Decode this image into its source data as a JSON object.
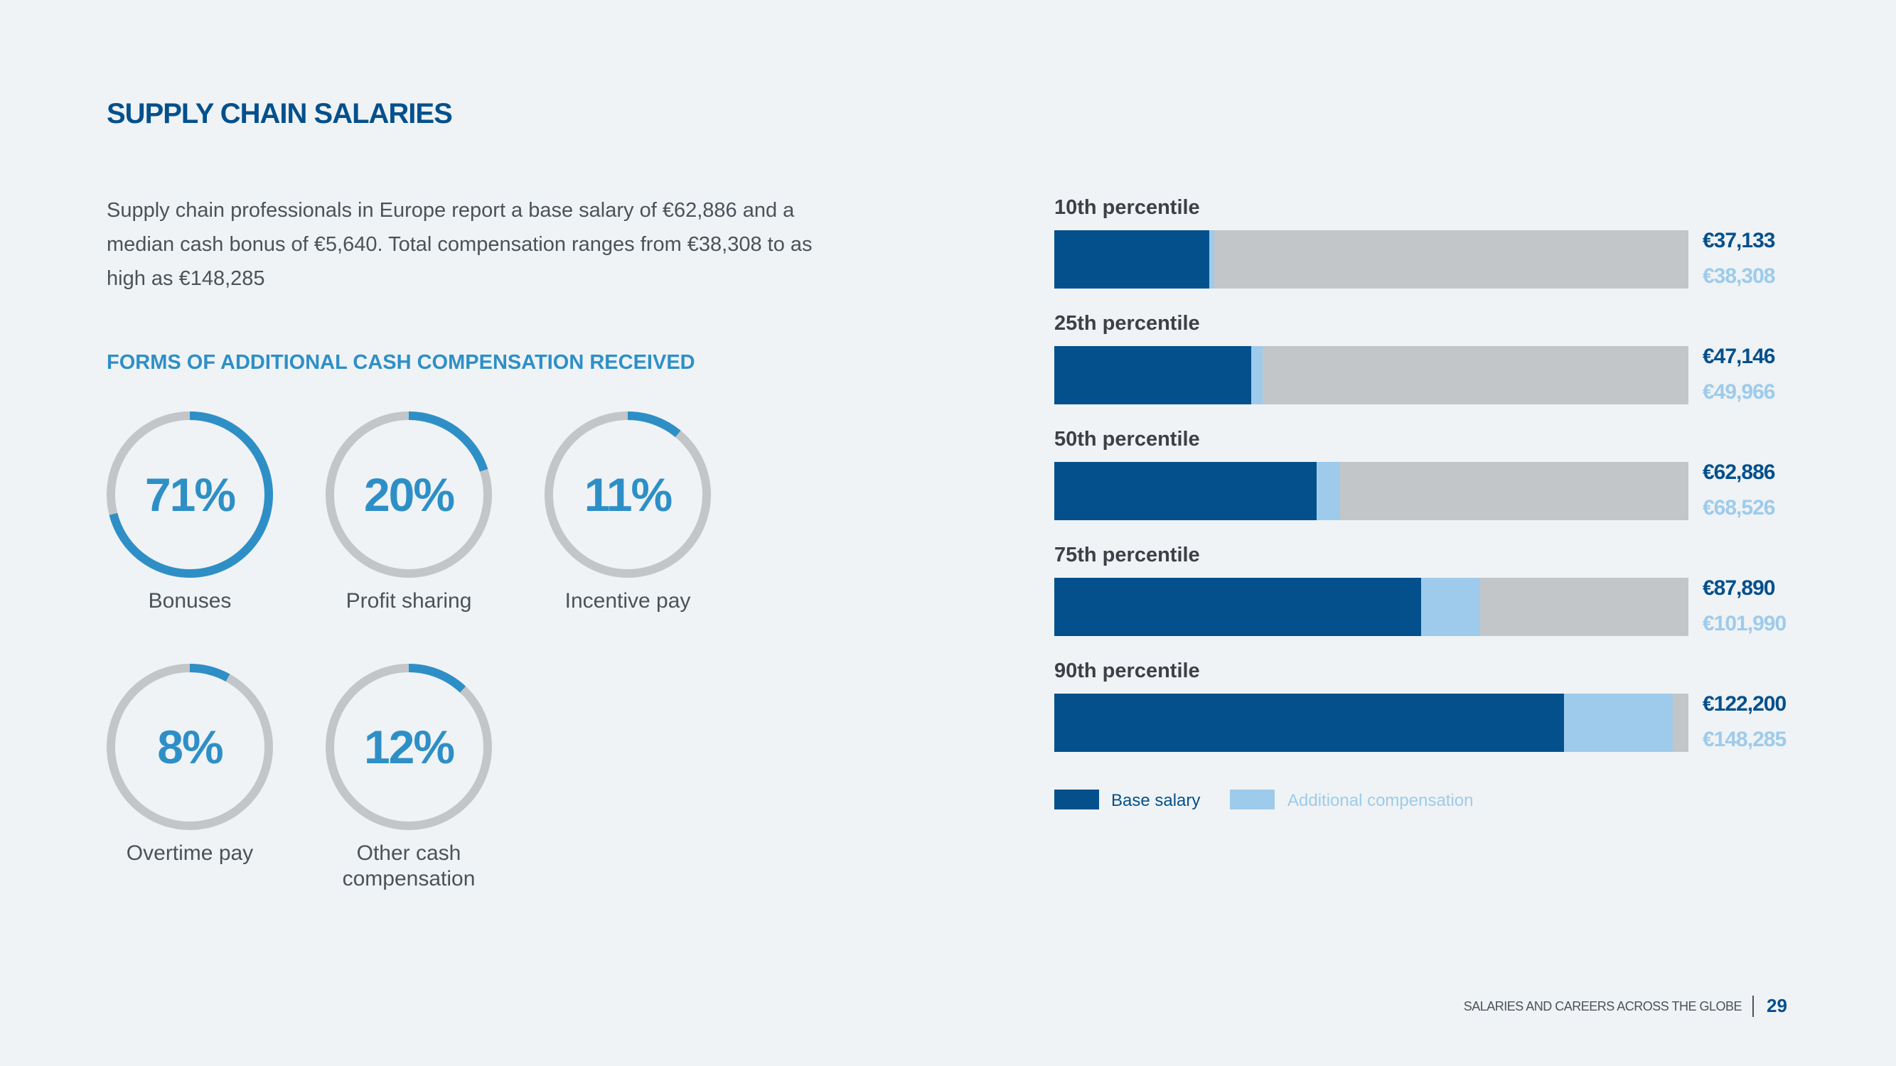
{
  "page": {
    "title": "SUPPLY CHAIN SALARIES",
    "intro": "Supply chain professionals in Europe report a base salary of €62,886 and a median cash bonus of €5,640. Total compensation ranges from €38,308 to as high as €148,285",
    "section_title": "FORMS OF ADDITIONAL CASH COMPENSATION RECEIVED",
    "footer_text": "SALARIES AND CAREERS ACROSS THE GLOBE",
    "page_number": "29"
  },
  "colors": {
    "base": "#04508c",
    "additional": "#9ecbeb",
    "track": "#c2c6c9",
    "accent": "#2e8fc7"
  },
  "chart_data": [
    {
      "type": "pie",
      "subtype": "donut",
      "categories": [
        "Bonuses",
        "Profit sharing",
        "Incentive pay",
        "Overtime pay",
        "Other cash compensation"
      ],
      "values": [
        71,
        20,
        11,
        8,
        12
      ],
      "labels": [
        "71%",
        "20%",
        "11%",
        "8%",
        "12%"
      ]
    },
    {
      "type": "bar",
      "orientation": "horizontal",
      "stacked": true,
      "categories": [
        "10th percentile",
        "25th percentile",
        "50th percentile",
        "75th percentile",
        "90th percentile"
      ],
      "series": [
        {
          "name": "Base salary",
          "values": [
            37133,
            47146,
            62886,
            87890,
            122200
          ]
        },
        {
          "name": "Additional compensation",
          "values": [
            1175,
            2820,
            5640,
            14100,
            26085
          ]
        }
      ],
      "totals": [
        38308,
        49966,
        68526,
        101990,
        148285
      ],
      "base_labels": [
        "€37,133",
        "€47,146",
        "€62,886",
        "€87,890",
        "€122,200"
      ],
      "total_labels": [
        "€38,308",
        "€49,966",
        "€68,526",
        "€101,990",
        "€148,285"
      ],
      "xlim": [
        0,
        152000
      ],
      "legend": [
        "Base salary",
        "Additional compensation"
      ],
      "legend_position": "bottom"
    }
  ]
}
